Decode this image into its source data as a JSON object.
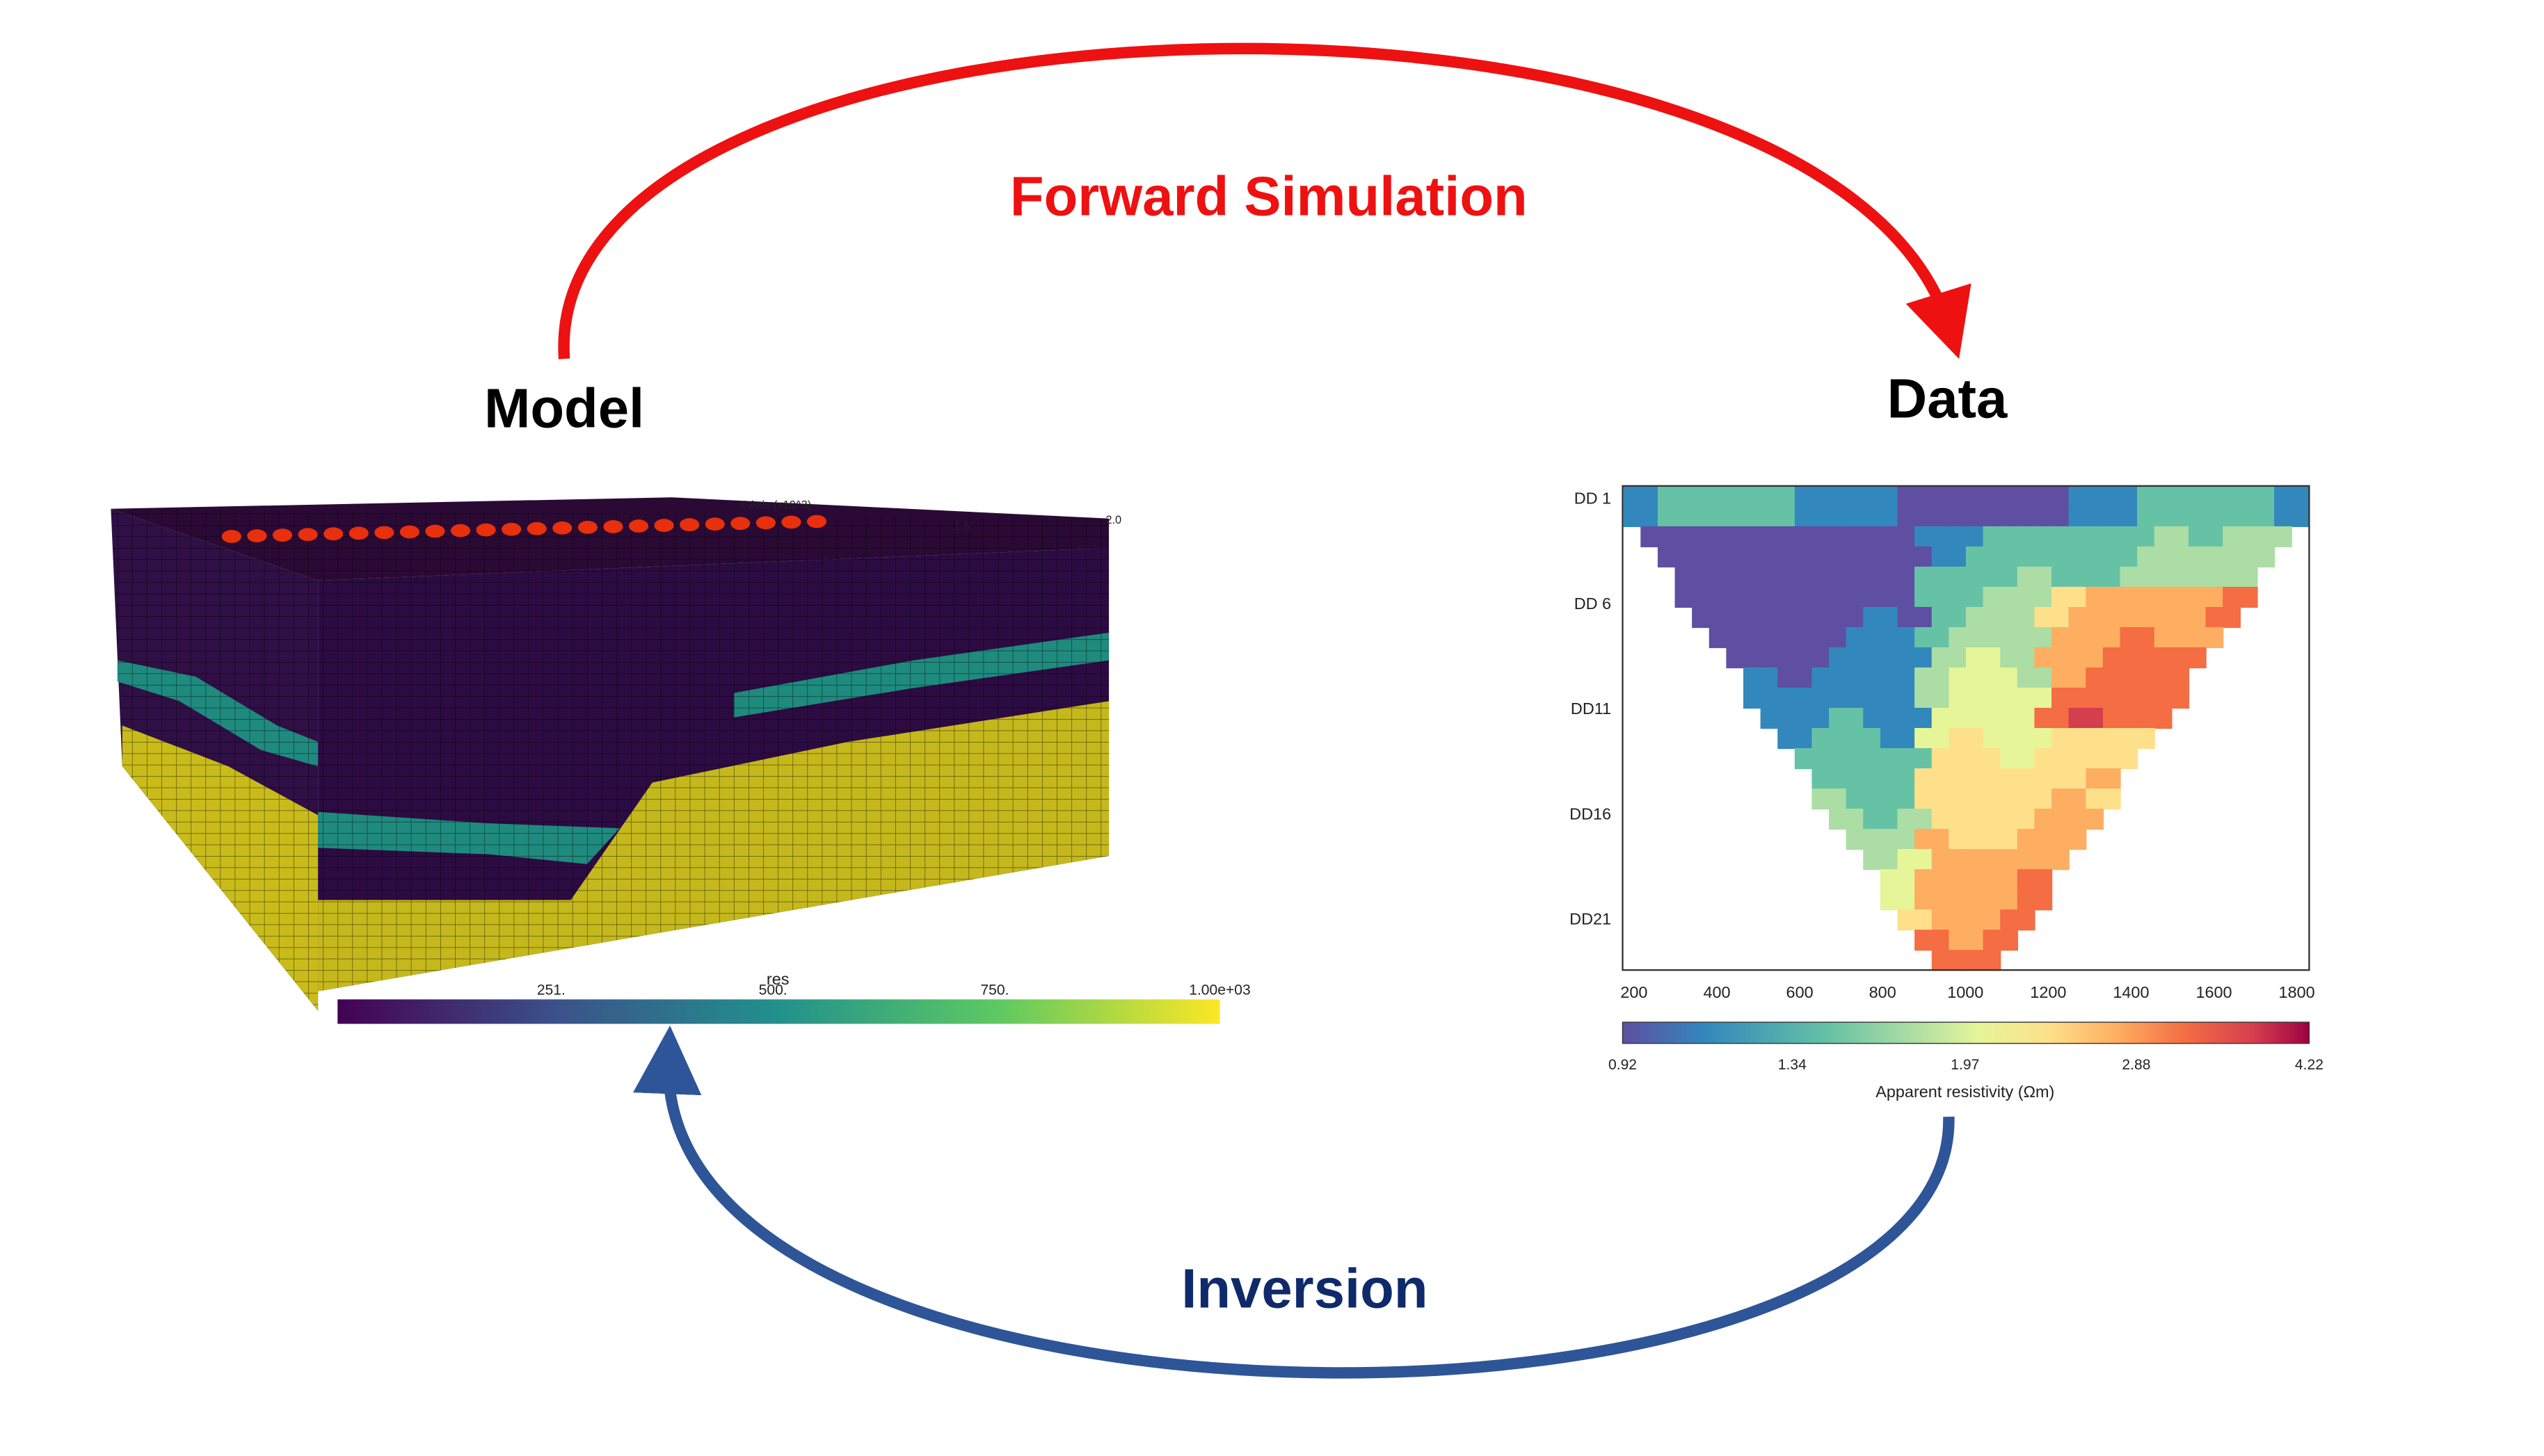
{
  "labels": {
    "forward": "Forward Simulation",
    "model": "Model",
    "data": "Data",
    "inversion": "Inversion"
  },
  "model_panel": {
    "axis_label": "X Axis (x10^3)",
    "axis_ticks": [
      "1.5",
      "2.0"
    ],
    "colorbar_title": "res",
    "colorbar_ticks": [
      "251.",
      "500.",
      "750.",
      "1.00e+03"
    ]
  },
  "data_panel": {
    "y_labels": [
      "DD 1",
      "DD 6",
      "DD11",
      "DD16",
      "DD21"
    ],
    "x_ticks": [
      "200",
      "400",
      "600",
      "800",
      "1000",
      "1200",
      "1400",
      "1600",
      "1800"
    ],
    "colorbar_ticks": [
      "0.92",
      "1.34",
      "1.97",
      "2.88",
      "4.22"
    ],
    "colorbar_label": "Apparent resistivity (Ωm)"
  }
}
